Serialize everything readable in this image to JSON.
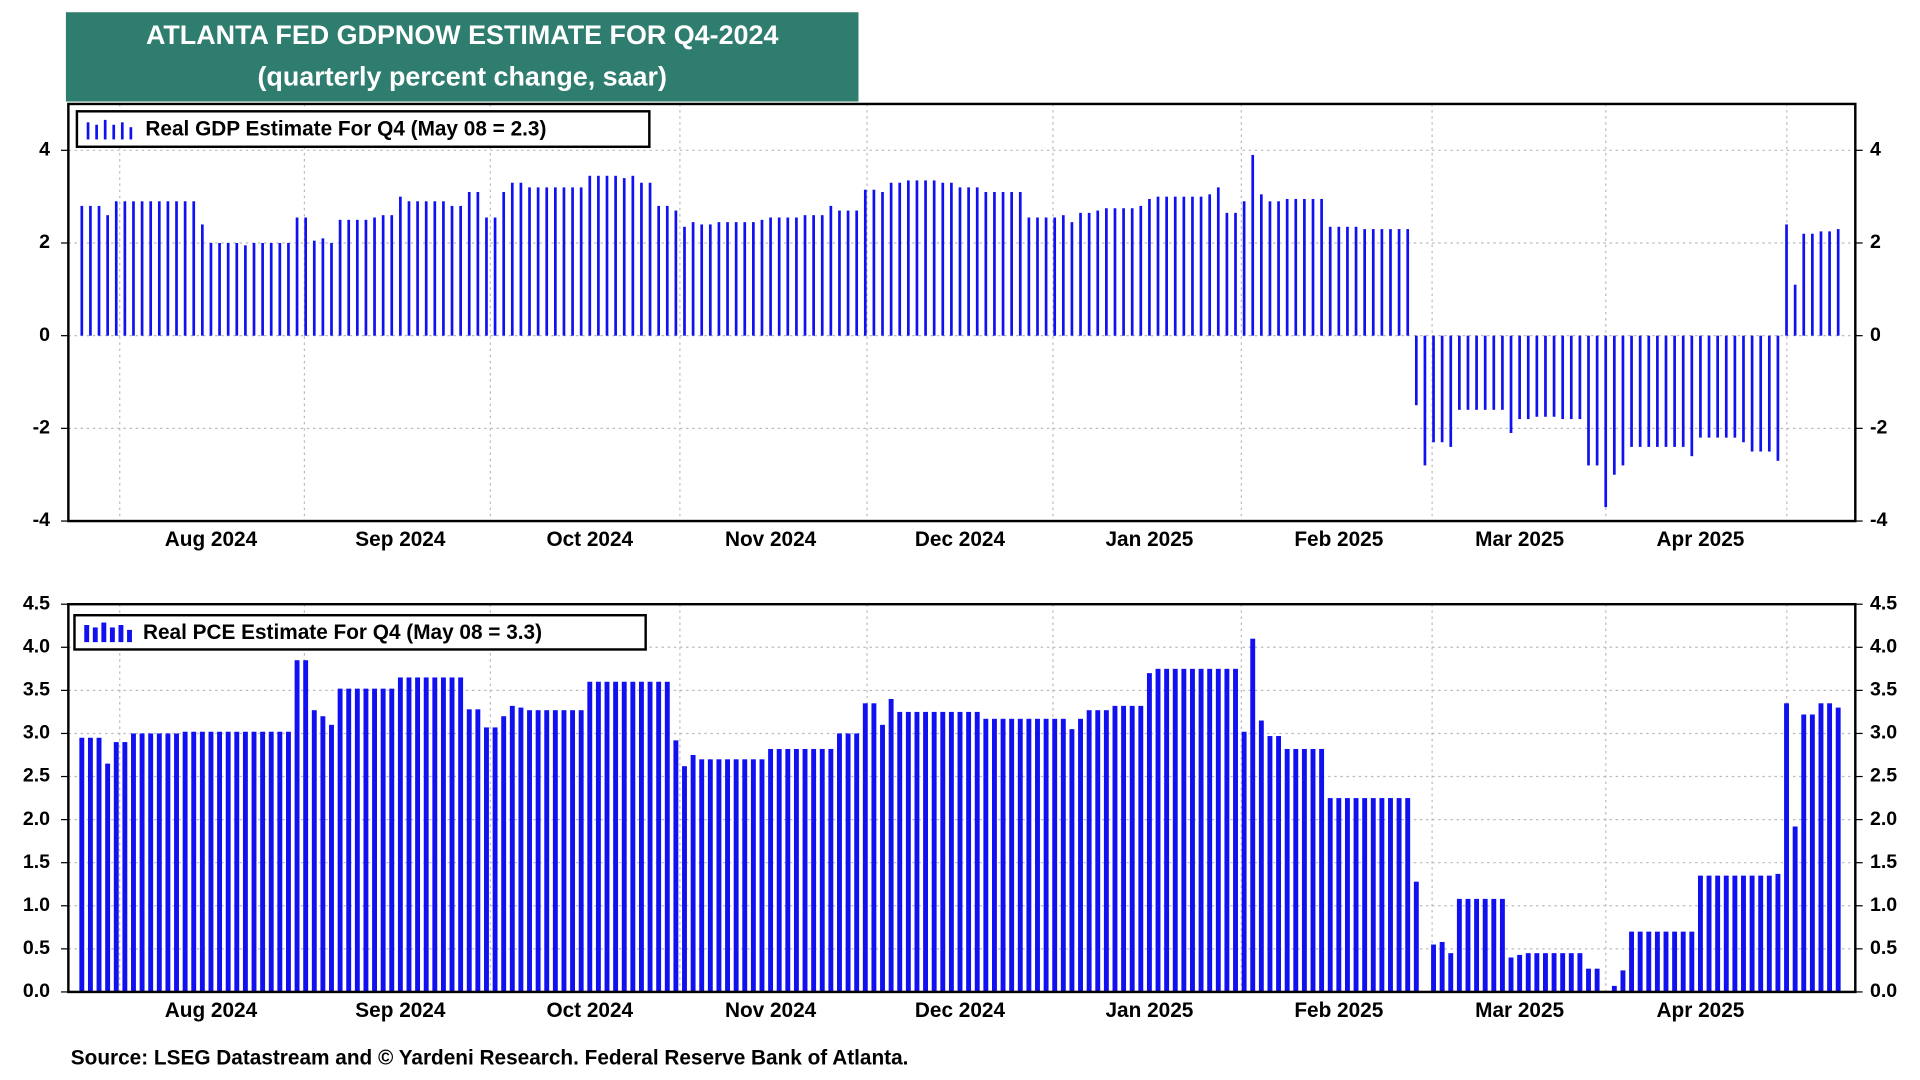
{
  "header": {
    "title": "ATLANTA FED GDPNOW ESTIMATE FOR Q4-2024",
    "subtitle": "(quarterly percent change, saar)"
  },
  "source": "Source: LSEG Datastream and © Yardeni Research. Federal Reserve Bank of Atlanta.",
  "chart_data": [
    {
      "type": "bar",
      "grid": true,
      "legend": "upper left",
      "ylim": [
        -4,
        5
      ],
      "yticks": [
        -4,
        -2,
        0,
        2,
        4
      ],
      "categories": [
        null,
        null,
        null,
        null,
        null,
        null,
        null,
        null,
        null,
        null,
        null,
        null,
        null,
        null,
        null,
        "Aug 2024",
        null,
        null,
        null,
        null,
        null,
        null,
        null,
        null,
        null,
        null,
        null,
        null,
        null,
        null,
        null,
        null,
        null,
        null,
        null,
        null,
        null,
        "Sep 2024",
        null,
        null,
        null,
        null,
        null,
        null,
        null,
        null,
        null,
        null,
        null,
        null,
        null,
        null,
        null,
        null,
        null,
        null,
        null,
        null,
        null,
        "Oct 2024",
        null,
        null,
        null,
        null,
        null,
        null,
        null,
        null,
        null,
        null,
        null,
        null,
        null,
        null,
        null,
        null,
        null,
        null,
        null,
        null,
        "Nov 2024",
        null,
        null,
        null,
        null,
        null,
        null,
        null,
        null,
        null,
        null,
        null,
        null,
        null,
        null,
        null,
        null,
        null,
        null,
        null,
        null,
        null,
        "Dec 2024",
        null,
        null,
        null,
        null,
        null,
        null,
        null,
        null,
        null,
        null,
        null,
        null,
        null,
        null,
        null,
        null,
        null,
        null,
        null,
        null,
        null,
        "Jan 2025",
        null,
        null,
        null,
        null,
        null,
        null,
        null,
        null,
        null,
        null,
        null,
        null,
        null,
        null,
        null,
        null,
        null,
        null,
        null,
        null,
        null,
        "Feb 2025",
        null,
        null,
        null,
        null,
        null,
        null,
        null,
        null,
        null,
        null,
        null,
        null,
        null,
        null,
        null,
        null,
        null,
        null,
        null,
        null,
        "Mar 2025",
        null,
        null,
        null,
        null,
        null,
        null,
        null,
        null,
        null,
        null,
        null,
        null,
        null,
        null,
        null,
        null,
        null,
        null,
        null,
        null,
        "Apr 2025",
        null,
        null,
        null,
        null,
        null,
        null,
        null,
        null,
        null,
        null,
        null,
        null,
        null,
        null,
        null,
        null
      ],
      "series": [
        {
          "name": "Real GDP Estimate For Q4 (May 08 = 2.3)",
          "color": "#1010f0",
          "values": [
            2.8,
            2.8,
            2.8,
            2.6,
            2.9,
            2.9,
            2.9,
            2.9,
            2.9,
            2.9,
            2.9,
            2.9,
            2.9,
            2.9,
            2.4,
            2.0,
            2.0,
            2.0,
            2.0,
            1.95,
            2.0,
            2.0,
            2.0,
            2.0,
            2.0,
            2.55,
            2.55,
            2.05,
            2.1,
            2.0,
            2.5,
            2.5,
            2.5,
            2.5,
            2.55,
            2.6,
            2.6,
            3.0,
            2.9,
            2.9,
            2.9,
            2.9,
            2.9,
            2.8,
            2.8,
            3.1,
            3.1,
            2.55,
            2.55,
            3.1,
            3.3,
            3.3,
            3.2,
            3.2,
            3.2,
            3.2,
            3.2,
            3.2,
            3.2,
            3.45,
            3.45,
            3.45,
            3.45,
            3.4,
            3.45,
            3.3,
            3.3,
            2.8,
            2.8,
            2.7,
            2.35,
            2.45,
            2.4,
            2.4,
            2.45,
            2.45,
            2.45,
            2.45,
            2.45,
            2.5,
            2.55,
            2.55,
            2.55,
            2.55,
            2.6,
            2.6,
            2.6,
            2.8,
            2.7,
            2.7,
            2.7,
            3.15,
            3.15,
            3.1,
            3.3,
            3.3,
            3.35,
            3.35,
            3.35,
            3.35,
            3.3,
            3.3,
            3.2,
            3.2,
            3.2,
            3.1,
            3.1,
            3.1,
            3.1,
            3.1,
            2.55,
            2.55,
            2.55,
            2.55,
            2.6,
            2.45,
            2.65,
            2.65,
            2.7,
            2.75,
            2.75,
            2.75,
            2.75,
            2.8,
            2.95,
            3.0,
            3.0,
            3.0,
            3.0,
            3.0,
            3.0,
            3.05,
            3.2,
            2.65,
            2.65,
            2.9,
            3.9,
            3.05,
            2.9,
            2.9,
            2.95,
            2.95,
            2.95,
            2.95,
            2.95,
            2.35,
            2.35,
            2.35,
            2.35,
            2.3,
            2.3,
            2.3,
            2.3,
            2.3,
            2.3,
            -1.5,
            -2.8,
            -2.3,
            -2.3,
            -2.4,
            -1.6,
            -1.6,
            -1.6,
            -1.6,
            -1.6,
            -1.6,
            -2.1,
            -1.8,
            -1.8,
            -1.75,
            -1.75,
            -1.75,
            -1.8,
            -1.8,
            -1.8,
            -2.8,
            -2.8,
            -3.7,
            -3.0,
            -2.8,
            -2.4,
            -2.4,
            -2.4,
            -2.4,
            -2.4,
            -2.4,
            -2.4,
            -2.6,
            -2.2,
            -2.2,
            -2.2,
            -2.2,
            -2.2,
            -2.3,
            -2.5,
            -2.5,
            -2.5,
            -2.7,
            2.4,
            1.1,
            2.2,
            2.2,
            2.25,
            2.25,
            2.3
          ]
        }
      ]
    },
    {
      "type": "bar",
      "grid": true,
      "legend": "upper left",
      "ylim": [
        0,
        4.5
      ],
      "yticks": [
        {
          "value": 0,
          "label": "0.0"
        },
        0.5,
        {
          "value": 1,
          "label": "1.0"
        },
        1.5,
        {
          "value": 2,
          "label": "2.0"
        },
        2.5,
        {
          "value": 3,
          "label": "3.0"
        },
        3.5,
        {
          "value": 4,
          "label": "4.0"
        },
        4.5
      ],
      "categories": [
        null,
        null,
        null,
        null,
        null,
        null,
        null,
        null,
        null,
        null,
        null,
        null,
        null,
        null,
        null,
        "Aug 2024",
        null,
        null,
        null,
        null,
        null,
        null,
        null,
        null,
        null,
        null,
        null,
        null,
        null,
        null,
        null,
        null,
        null,
        null,
        null,
        null,
        null,
        "Sep 2024",
        null,
        null,
        null,
        null,
        null,
        null,
        null,
        null,
        null,
        null,
        null,
        null,
        null,
        null,
        null,
        null,
        null,
        null,
        null,
        null,
        null,
        "Oct 2024",
        null,
        null,
        null,
        null,
        null,
        null,
        null,
        null,
        null,
        null,
        null,
        null,
        null,
        null,
        null,
        null,
        null,
        null,
        null,
        null,
        "Nov 2024",
        null,
        null,
        null,
        null,
        null,
        null,
        null,
        null,
        null,
        null,
        null,
        null,
        null,
        null,
        null,
        null,
        null,
        null,
        null,
        null,
        null,
        "Dec 2024",
        null,
        null,
        null,
        null,
        null,
        null,
        null,
        null,
        null,
        null,
        null,
        null,
        null,
        null,
        null,
        null,
        null,
        null,
        null,
        null,
        null,
        "Jan 2025",
        null,
        null,
        null,
        null,
        null,
        null,
        null,
        null,
        null,
        null,
        null,
        null,
        null,
        null,
        null,
        null,
        null,
        null,
        null,
        null,
        null,
        "Feb 2025",
        null,
        null,
        null,
        null,
        null,
        null,
        null,
        null,
        null,
        null,
        null,
        null,
        null,
        null,
        null,
        null,
        null,
        null,
        null,
        null,
        "Mar 2025",
        null,
        null,
        null,
        null,
        null,
        null,
        null,
        null,
        null,
        null,
        null,
        null,
        null,
        null,
        null,
        null,
        null,
        null,
        null,
        null,
        "Apr 2025",
        null,
        null,
        null,
        null,
        null,
        null,
        null,
        null,
        null,
        null,
        null,
        null,
        null,
        null,
        null,
        null
      ],
      "series": [
        {
          "name": "Real PCE Estimate For Q4 (May 08 = 3.3)",
          "color": "#1010f0",
          "values": [
            2.95,
            2.95,
            2.95,
            2.65,
            2.9,
            2.9,
            3.0,
            3.0,
            3.0,
            3.0,
            3.0,
            3.0,
            3.02,
            3.02,
            3.02,
            3.02,
            3.02,
            3.02,
            3.02,
            3.02,
            3.02,
            3.02,
            3.02,
            3.02,
            3.02,
            3.85,
            3.85,
            3.27,
            3.2,
            3.1,
            3.52,
            3.52,
            3.52,
            3.52,
            3.52,
            3.52,
            3.52,
            3.65,
            3.65,
            3.65,
            3.65,
            3.65,
            3.65,
            3.65,
            3.65,
            3.28,
            3.28,
            3.07,
            3.07,
            3.2,
            3.32,
            3.3,
            3.27,
            3.27,
            3.27,
            3.27,
            3.27,
            3.27,
            3.27,
            3.6,
            3.6,
            3.6,
            3.6,
            3.6,
            3.6,
            3.6,
            3.6,
            3.6,
            3.6,
            2.92,
            2.62,
            2.75,
            2.7,
            2.7,
            2.7,
            2.7,
            2.7,
            2.7,
            2.7,
            2.7,
            2.82,
            2.82,
            2.82,
            2.82,
            2.82,
            2.82,
            2.82,
            2.82,
            3.0,
            3.0,
            3.0,
            3.35,
            3.35,
            3.1,
            3.4,
            3.25,
            3.25,
            3.25,
            3.25,
            3.25,
            3.25,
            3.25,
            3.25,
            3.25,
            3.25,
            3.17,
            3.17,
            3.17,
            3.17,
            3.17,
            3.17,
            3.17,
            3.17,
            3.17,
            3.17,
            3.05,
            3.17,
            3.27,
            3.27,
            3.27,
            3.32,
            3.32,
            3.32,
            3.32,
            3.7,
            3.75,
            3.75,
            3.75,
            3.75,
            3.75,
            3.75,
            3.75,
            3.75,
            3.75,
            3.75,
            3.02,
            4.1,
            3.15,
            2.97,
            2.97,
            2.82,
            2.82,
            2.82,
            2.82,
            2.82,
            2.25,
            2.25,
            2.25,
            2.25,
            2.25,
            2.25,
            2.25,
            2.25,
            2.25,
            2.25,
            1.28,
            0,
            0.55,
            0.58,
            0.45,
            1.08,
            1.08,
            1.08,
            1.08,
            1.08,
            1.08,
            0.4,
            0.43,
            0.45,
            0.45,
            0.45,
            0.45,
            0.45,
            0.45,
            0.45,
            0.27,
            0.27,
            0,
            0.07,
            0.25,
            0.7,
            0.7,
            0.7,
            0.7,
            0.7,
            0.7,
            0.7,
            0.7,
            1.35,
            1.35,
            1.35,
            1.35,
            1.35,
            1.35,
            1.35,
            1.35,
            1.35,
            1.37,
            3.35,
            1.92,
            3.22,
            3.22,
            3.35,
            3.35,
            3.3
          ]
        }
      ]
    }
  ]
}
